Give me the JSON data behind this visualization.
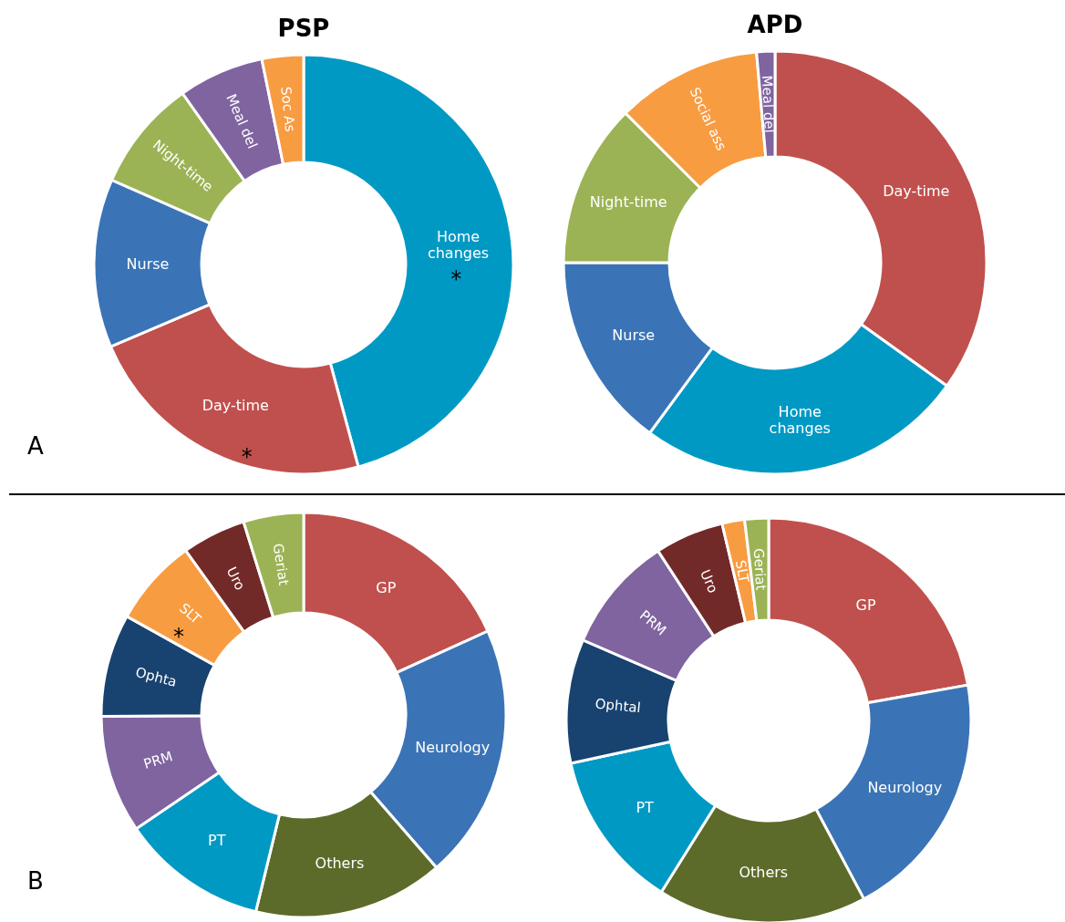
{
  "chart_data": [
    {
      "type": "donut",
      "title": "PSP",
      "categories": [
        "Home changes",
        "Day-time",
        "Nurse",
        "Night-time",
        "Meal del",
        "Soc As"
      ],
      "values": [
        45.8,
        22.8,
        13,
        8.6,
        6.6,
        3.2
      ],
      "colors": [
        "#0099c4",
        "#c0504d",
        "#3b74b6",
        "#9bb355",
        "#7f64a0",
        "#f89c42"
      ],
      "annotations": [
        "A",
        {
          "text": "*",
          "x": "Home changes"
        },
        {
          "text": "*",
          "x": "Day-time"
        }
      ]
    },
    {
      "type": "donut",
      "title": "APD",
      "categories": [
        "Day-time",
        "Home changes",
        "Nurse",
        "Night-time",
        "Social ass",
        "Meal del"
      ],
      "values": [
        34.9,
        25.2,
        14.9,
        12.5,
        11.1,
        1.4
      ],
      "colors": [
        "#c0504d",
        "#0099c4",
        "#3b74b6",
        "#9bb355",
        "#f89c42",
        "#7f64a0"
      ]
    },
    {
      "type": "donut",
      "categories": [
        "GP",
        "Neurology",
        "Others",
        "PT",
        "PRM",
        "Ophta",
        "SLT",
        "Uro",
        "Geriat"
      ],
      "values": [
        18.2,
        20.4,
        15.2,
        11.7,
        9.4,
        8.2,
        7.0,
        5.1,
        4.8
      ],
      "colors": [
        "#c0504d",
        "#3b74b6",
        "#5c6b2a",
        "#0099c4",
        "#7f64a0",
        "#18426f",
        "#f89c42",
        "#722a28",
        "#9bb355"
      ],
      "annotations": [
        "B",
        {
          "text": "*",
          "x": "SLT"
        }
      ]
    },
    {
      "type": "donut",
      "categories": [
        "GP",
        "Neurology",
        "Others",
        "PT",
        "Ophtal",
        "PRM",
        "Uro",
        "SLT",
        "Geriat"
      ],
      "values": [
        22.2,
        20,
        16.7,
        12.7,
        9.9,
        9.3,
        5.5,
        1.8,
        1.9
      ],
      "colors": [
        "#c0504d",
        "#3b74b6",
        "#5c6b2a",
        "#0099c4",
        "#18426f",
        "#7f64a0",
        "#722a28",
        "#f89c42",
        "#9bb355"
      ]
    }
  ]
}
